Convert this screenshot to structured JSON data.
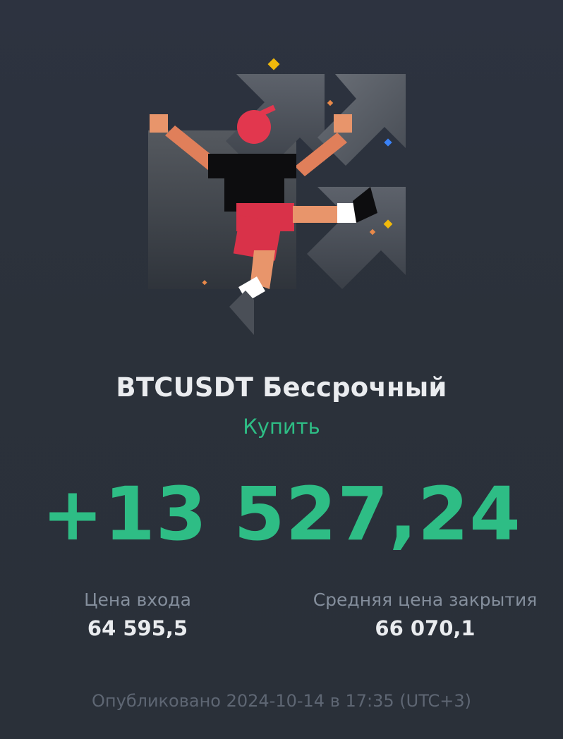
{
  "trade": {
    "title": "BTCUSDT Бессрочный",
    "side": "Купить",
    "pnl": "+13 527,24"
  },
  "stats": {
    "entry_label": "Цена входа",
    "entry_value": "64 595,5",
    "close_label": "Средняя цена закрытия",
    "close_value": "66 070,1"
  },
  "footer": {
    "published": "Опубликовано 2024-10-14 в 17:35 (UTC+3)"
  },
  "illustration": {
    "name": "jumping-person-with-rising-arrows",
    "accent_colors": [
      "#f0b90b",
      "#e8894a",
      "#3b82f6",
      "#e2374e"
    ]
  },
  "colors": {
    "background": "#2b3139",
    "positive": "#2ebd85",
    "text_primary": "#eaecef",
    "text_secondary": "#848e9c"
  }
}
